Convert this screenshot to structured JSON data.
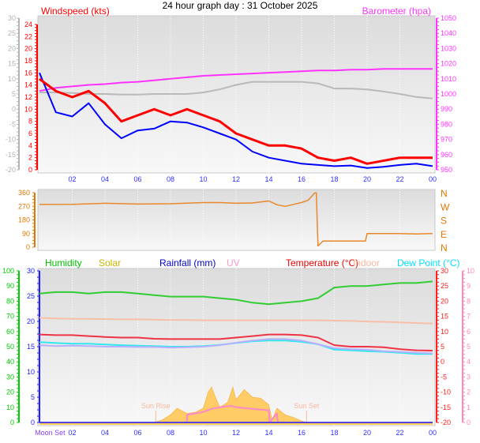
{
  "title": "24 hour graph day : 31 October 2025",
  "chart_data": [
    {
      "type": "line",
      "panel": "wind-baro",
      "x_ticks": [
        "02",
        "04",
        "06",
        "08",
        "10",
        "12",
        "14",
        "16",
        "18",
        "20",
        "22",
        "00"
      ],
      "x_tick_hours": [
        2,
        4,
        6,
        8,
        10,
        12,
        14,
        16,
        18,
        20,
        22,
        24
      ],
      "xlim_hours": [
        0,
        24
      ],
      "axes": {
        "outer_left": {
          "ticks": [
            "-20",
            "-15",
            "-10",
            "-5",
            "0",
            "5",
            "10",
            "15",
            "20",
            "25",
            "30"
          ],
          "range": [
            -20,
            30
          ],
          "color": "#b4b4b4"
        },
        "left": {
          "label": "Windspeed (kts)",
          "ticks": [
            "0",
            "2",
            "4",
            "6",
            "8",
            "10",
            "12",
            "14",
            "16",
            "18",
            "20",
            "22",
            "24"
          ],
          "range": [
            0,
            25
          ],
          "color": "#ff0000"
        },
        "right": {
          "label": "Barometer (hpa)",
          "ticks": [
            "950",
            "960",
            "970",
            "980",
            "990",
            "1000",
            "1010",
            "1020",
            "1030",
            "1040",
            "1050"
          ],
          "range": [
            950,
            1050
          ],
          "color": "#ff33ff"
        }
      },
      "x_hours": [
        0,
        1,
        2,
        3,
        4,
        5,
        6,
        7,
        8,
        9,
        10,
        11,
        12,
        13,
        14,
        15,
        16,
        17,
        18,
        19,
        20,
        21,
        22,
        23,
        24
      ],
      "series": [
        {
          "key": "gust",
          "axis": "left",
          "color": "#ff0000",
          "values": [
            15,
            13,
            12,
            13,
            11,
            8,
            9,
            10,
            9,
            10,
            9,
            8,
            6,
            5,
            4,
            4,
            3.5,
            2,
            1.5,
            2,
            1,
            1.5,
            2,
            2,
            2
          ]
        },
        {
          "key": "wind",
          "axis": "left",
          "color": "#0000ff",
          "values": [
            16,
            9.5,
            8.8,
            11,
            7.5,
            5.2,
            6.5,
            6.8,
            8,
            7.8,
            7,
            6,
            5,
            3,
            2,
            1.5,
            1,
            0.8,
            0.6,
            0.7,
            0.3,
            0.5,
            0.8,
            1,
            0.6
          ]
        },
        {
          "key": "barometer",
          "axis": "right",
          "color": "#ff33ff",
          "values": [
            1002,
            1004,
            1005,
            1006,
            1006.5,
            1007.5,
            1008,
            1009,
            1010,
            1011,
            1012,
            1012.5,
            1013,
            1013.5,
            1014,
            1014.5,
            1015,
            1015.5,
            1015.5,
            1016,
            1016,
            1016.5,
            1016.5,
            1016.5,
            1016.5
          ]
        },
        {
          "key": "grey-series",
          "axis": "outer_left",
          "color": "#b9b9b9",
          "values": [
            5.5,
            5.5,
            5.3,
            5,
            5,
            4.8,
            4.8,
            5,
            5,
            5,
            5.5,
            6.5,
            8,
            9,
            9,
            9,
            9,
            8.5,
            6.8,
            6.8,
            6.5,
            5.8,
            5,
            4,
            3.5
          ]
        }
      ]
    },
    {
      "type": "line",
      "panel": "wind-direction",
      "axes": {
        "left": {
          "ticks": [
            "0",
            "90",
            "180",
            "270",
            "360"
          ],
          "range": [
            0,
            360
          ],
          "color": "#e07800"
        },
        "right": {
          "ticks": [
            "N",
            "E",
            "S",
            "W",
            "N"
          ],
          "color": "#e07800"
        }
      },
      "x_hours": [
        0,
        2,
        4,
        6,
        8,
        10,
        11,
        12,
        13,
        14,
        14.5,
        15,
        16,
        16.4,
        16.8,
        16.9,
        17.0,
        17.3,
        18,
        19,
        19.9,
        20,
        22,
        23,
        24
      ],
      "series": [
        {
          "key": "wind-direction",
          "color": "#e8882a",
          "values": [
            282,
            283,
            290,
            285,
            287,
            295,
            295,
            290,
            292,
            305,
            280,
            270,
            295,
            310,
            358,
            358,
            8,
            40,
            40,
            40,
            40,
            90,
            90,
            87,
            90
          ]
        }
      ]
    },
    {
      "type": "line",
      "panel": "temp-humidity",
      "axes": {
        "humidity": {
          "label": "Humidity",
          "ticks": [
            "0",
            "10",
            "20",
            "30",
            "40",
            "50",
            "60",
            "70",
            "80",
            "90",
            "100"
          ],
          "range": [
            0,
            100
          ],
          "color": "#00cc00"
        },
        "left": {
          "ticks": [
            "0",
            "5",
            "10",
            "15",
            "20",
            "25",
            "30"
          ],
          "range": [
            0,
            30
          ],
          "color": "#2020ff"
        },
        "right": {
          "ticks": [
            "-20",
            "-15",
            "-10",
            "-5",
            "0",
            "5",
            "10",
            "15",
            "20",
            "25",
            "30"
          ],
          "range": [
            -20,
            30
          ],
          "color": "#ff2020"
        },
        "uv": {
          "ticks": [
            "0",
            "1",
            "2",
            "3",
            "4",
            "5",
            "6",
            "7",
            "8",
            "9",
            "10"
          ],
          "range": [
            0,
            10
          ],
          "color": "#ff88bb"
        }
      },
      "legend": [
        {
          "label": "Humidity",
          "color": "#00c000"
        },
        {
          "label": "Solar",
          "color": "#c8b400"
        },
        {
          "label": "Rainfall (mm)",
          "color": "#0000cc"
        },
        {
          "label": "UV",
          "color": "#ff99cc"
        },
        {
          "label": "Temperature (°C)",
          "color": "#ee0000"
        },
        {
          "label": "Indoor",
          "color": "#f5b8a0"
        },
        {
          "label": "Dew Point (°C)",
          "color": "#00e0ff"
        }
      ],
      "x_ticks": [
        "Moon Set",
        "02",
        "04",
        "06",
        "08",
        "10",
        "12",
        "14",
        "16",
        "18",
        "20",
        "22",
        "00"
      ],
      "x_hours": [
        0,
        1,
        2,
        3,
        4,
        5,
        6,
        7,
        8,
        9,
        10,
        11,
        12,
        13,
        14,
        15,
        16,
        17,
        18,
        19,
        20,
        21,
        22,
        23,
        24
      ],
      "series": [
        {
          "key": "humidity",
          "axis": "humidity",
          "color": "#33cc33",
          "values": [
            85,
            86,
            86,
            85,
            86,
            86,
            85,
            84,
            83,
            83,
            83,
            82,
            81,
            79,
            78,
            79,
            80,
            82,
            89,
            90,
            90,
            91,
            92,
            92,
            93
          ]
        },
        {
          "key": "indoor",
          "axis": "right",
          "color": "#f7bfa8",
          "values": [
            14.5,
            14.3,
            14.2,
            14.2,
            14.1,
            14,
            14,
            13.9,
            13.8,
            13.8,
            13.7,
            13.7,
            13.7,
            13.7,
            13.7,
            13.7,
            13.7,
            13.7,
            13.6,
            13.5,
            13.3,
            13.2,
            13,
            12.8,
            12.6
          ]
        },
        {
          "key": "temperature",
          "axis": "right",
          "color": "#ee3344",
          "values": [
            9,
            8.8,
            8.8,
            8.5,
            8.2,
            8,
            8,
            7.6,
            7.5,
            7.5,
            7.5,
            7.5,
            8,
            8.5,
            9,
            9,
            8.8,
            8,
            5.5,
            5,
            5,
            4.8,
            4.2,
            3.8,
            3.7
          ]
        },
        {
          "key": "dew-point",
          "axis": "right",
          "color": "#33e6f0",
          "values": [
            6.5,
            6.2,
            6,
            6,
            5.7,
            5.5,
            5.3,
            5.2,
            5,
            5,
            5.2,
            5.6,
            6.2,
            6.8,
            7,
            7,
            6.6,
            5.8,
            4,
            3.8,
            3.5,
            3.3,
            3,
            2.6,
            2.6
          ]
        },
        {
          "key": "lavender-series",
          "axis": "right",
          "color": "#b8b0ff",
          "values": [
            5.5,
            5.2,
            5.3,
            5.2,
            5,
            5,
            4.9,
            4.9,
            4.7,
            4.8,
            5,
            5.5,
            6.3,
            7,
            7.5,
            7.5,
            7,
            5.8,
            4.5,
            4.2,
            4,
            3.5,
            3.3,
            3,
            2.8
          ]
        },
        {
          "key": "rainfall",
          "axis": "left",
          "color": "#5544dd",
          "values": [
            0,
            0,
            0,
            0,
            0,
            0,
            0,
            0,
            0,
            0,
            0,
            0,
            0,
            0,
            0,
            0,
            0,
            0,
            0,
            0,
            0,
            0,
            0,
            0,
            0
          ]
        }
      ],
      "solar": {
        "axis": "left",
        "color": "#ffcc66",
        "x_hours": [
          7,
          7.5,
          8,
          8.4,
          9,
          9.5,
          10,
          10.3,
          10.5,
          10.8,
          11,
          11.5,
          11.8,
          12,
          12.5,
          13,
          13.5,
          14,
          14.2,
          14.5,
          15,
          15.5,
          16,
          16.3
        ],
        "values": [
          0,
          0.5,
          1.5,
          2.8,
          1.8,
          2,
          2.8,
          6,
          7,
          4.5,
          3,
          4,
          7,
          4.5,
          6.5,
          5,
          4.8,
          3.5,
          0.5,
          2.8,
          1.5,
          1,
          0.3,
          0
        ]
      },
      "uv": {
        "axis": "uv",
        "color": "#ff88cc",
        "x_hours": [
          7,
          9,
          9.01,
          10,
          10.5,
          11,
          11.7,
          12,
          13,
          14,
          14.05,
          14.5,
          14.55,
          16
        ],
        "values": [
          0,
          0,
          0.5,
          0.7,
          0.9,
          1,
          1.1,
          1.0,
          0.9,
          0.8,
          0,
          0.6,
          0,
          0
        ]
      },
      "annotations": [
        {
          "label": "Sun Rise",
          "hour": 7.1,
          "color": "#f5b8a0"
        },
        {
          "label": "Sun Set",
          "hour": 16.3,
          "color": "#f5b8a0"
        }
      ]
    }
  ]
}
